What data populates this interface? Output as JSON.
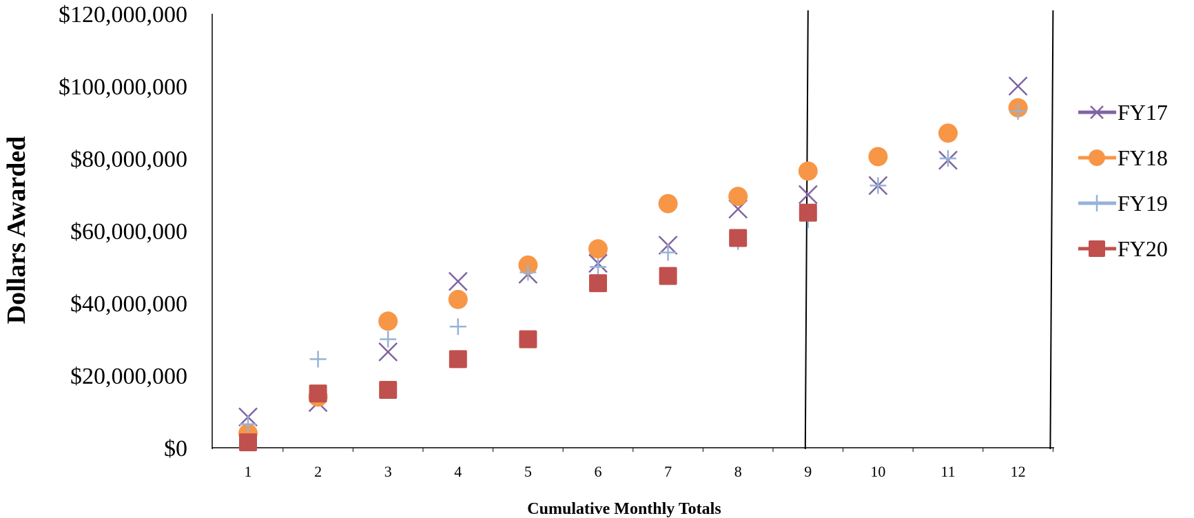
{
  "chart_data": {
    "type": "scatter",
    "title": "",
    "xlabel": "Cumulative Monthly Totals",
    "ylabel": "Dollars Awarded",
    "x": [
      1,
      2,
      3,
      4,
      5,
      6,
      7,
      8,
      9,
      10,
      11,
      12
    ],
    "x_tick_labels": [
      "1",
      "2",
      "3",
      "4",
      "5",
      "6",
      "7",
      "8",
      "9",
      "10",
      "11",
      "12"
    ],
    "ylim": [
      0,
      120000000
    ],
    "y_ticks": [
      0,
      20000000,
      40000000,
      60000000,
      80000000,
      100000000,
      120000000
    ],
    "y_tick_labels": [
      "$0",
      "$20,000,000",
      "$40,000,000",
      "$60,000,000",
      "$80,000,000",
      "$100,000,000",
      "$120,000,000"
    ],
    "grid": false,
    "legend_position": "right",
    "vertical_lines_at_x": [
      9,
      12.5
    ],
    "series": [
      {
        "name": "FY17",
        "marker": "x",
        "color": "#8064A2",
        "values": [
          8500000,
          12500000,
          26500000,
          46000000,
          48000000,
          51000000,
          56000000,
          66000000,
          70000000,
          72500000,
          79500000,
          100000000
        ]
      },
      {
        "name": "FY18",
        "marker": "circle",
        "color": "#F79646",
        "values": [
          4000000,
          14000000,
          35000000,
          41000000,
          50500000,
          55000000,
          67500000,
          69500000,
          76500000,
          80500000,
          87000000,
          94000000
        ]
      },
      {
        "name": "FY19",
        "marker": "plus",
        "color": "#95B3D7",
        "values": [
          6500000,
          24500000,
          30000000,
          33500000,
          48500000,
          50000000,
          54000000,
          57000000,
          63000000,
          72500000,
          80000000,
          93000000
        ]
      },
      {
        "name": "FY20",
        "marker": "square",
        "color": "#C0504D",
        "values": [
          1500000,
          15000000,
          16000000,
          24500000,
          30000000,
          45500000,
          47500000,
          58000000,
          65000000,
          null,
          null,
          null
        ]
      }
    ]
  }
}
